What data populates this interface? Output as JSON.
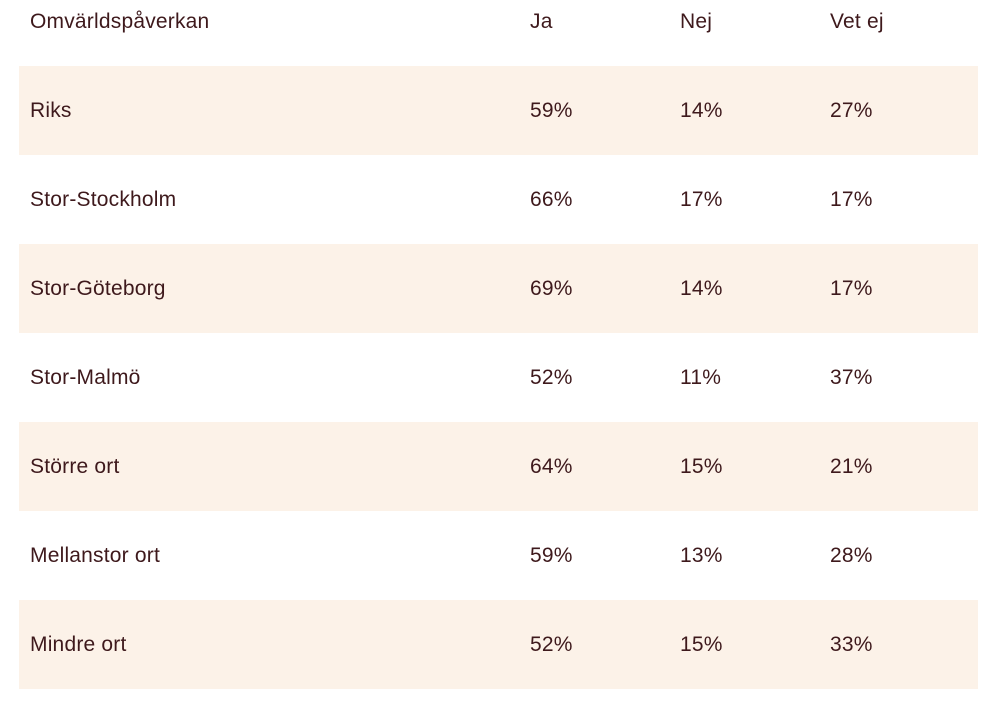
{
  "colors": {
    "background": "#ffffff",
    "stripe": "#fcf2e8",
    "text": "#3e191c"
  },
  "table": {
    "header": {
      "label": "Omvärldspåverkan",
      "col_ja": "Ja",
      "col_nej": "Nej",
      "col_vet_ej": "Vet ej"
    },
    "rows": [
      {
        "label": "Riks",
        "ja": "59%",
        "nej": "14%",
        "vet_ej": "27%"
      },
      {
        "label": "Stor-Stockholm",
        "ja": "66%",
        "nej": "17%",
        "vet_ej": "17%"
      },
      {
        "label": "Stor-Göteborg",
        "ja": "69%",
        "nej": "14%",
        "vet_ej": "17%"
      },
      {
        "label": "Stor-Malmö",
        "ja": "52%",
        "nej": "11%",
        "vet_ej": "37%"
      },
      {
        "label": "Större ort",
        "ja": "64%",
        "nej": "15%",
        "vet_ej": "21%"
      },
      {
        "label": "Mellanstor ort",
        "ja": "59%",
        "nej": "13%",
        "vet_ej": "28%"
      },
      {
        "label": "Mindre ort",
        "ja": "52%",
        "nej": "15%",
        "vet_ej": "33%"
      }
    ]
  },
  "chart_data": {
    "type": "table",
    "title": "Omvärldspåverkan",
    "columns": [
      "Omvärldspåverkan",
      "Ja",
      "Nej",
      "Vet ej"
    ],
    "rows": [
      [
        "Riks",
        "59%",
        "14%",
        "27%"
      ],
      [
        "Stor-Stockholm",
        "66%",
        "17%",
        "17%"
      ],
      [
        "Stor-Göteborg",
        "69%",
        "14%",
        "17%"
      ],
      [
        "Stor-Malmö",
        "52%",
        "11%",
        "37%"
      ],
      [
        "Större ort",
        "64%",
        "15%",
        "21%"
      ],
      [
        "Mellanstor ort",
        "59%",
        "13%",
        "28%"
      ],
      [
        "Mindre ort",
        "52%",
        "15%",
        "33%"
      ]
    ],
    "values_numeric": {
      "ja": [
        59,
        66,
        69,
        52,
        64,
        59,
        52
      ],
      "nej": [
        14,
        17,
        14,
        11,
        15,
        13,
        15
      ],
      "vet_ej": [
        27,
        17,
        17,
        37,
        21,
        28,
        33
      ]
    },
    "layout_hints": {
      "striped_rows": "odd rows shaded cream",
      "grid": "off",
      "legend": "none"
    }
  }
}
